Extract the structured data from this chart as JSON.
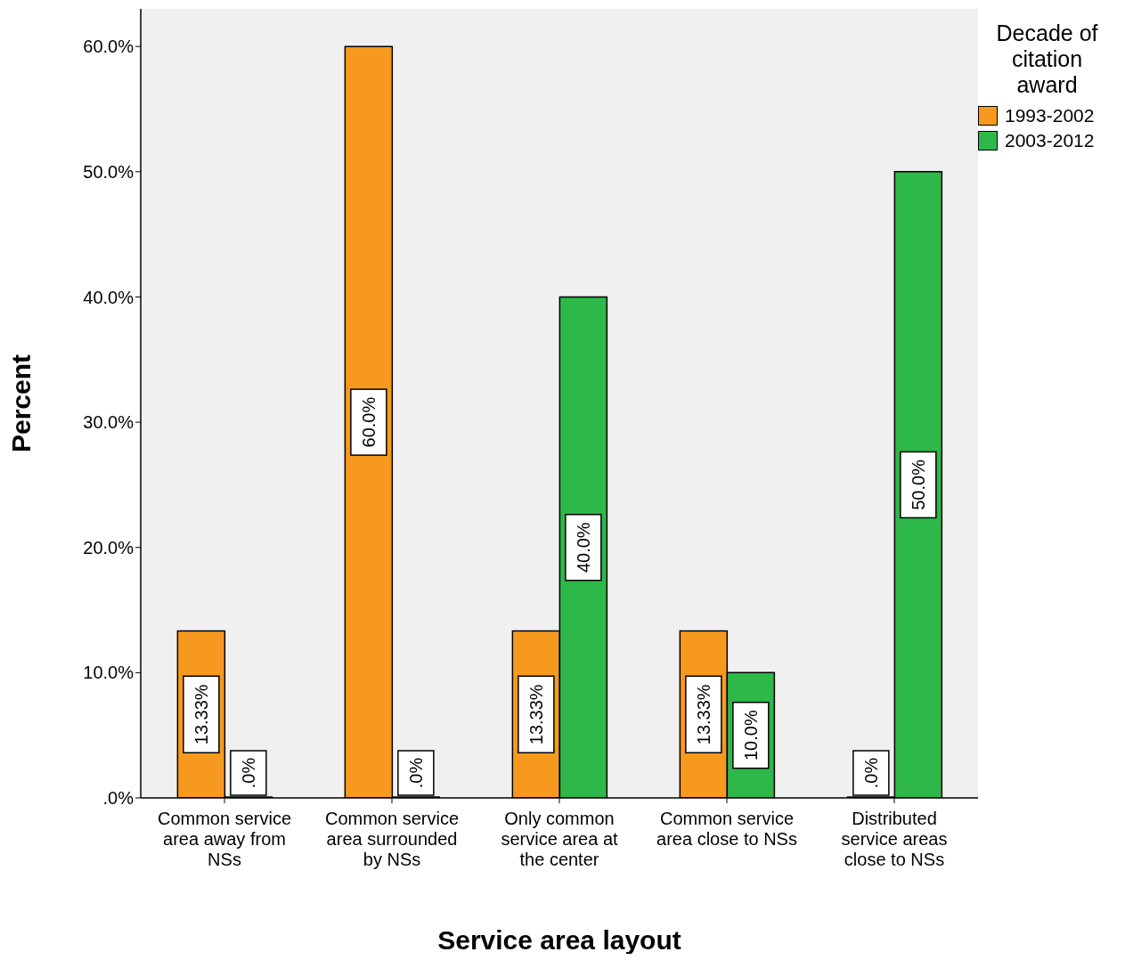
{
  "chart_data": {
    "type": "bar",
    "xlabel": "Service area layout",
    "ylabel": "Percent",
    "legend_title": "Decade of citation award",
    "legend": "top right",
    "categories": [
      "Common service area away from NSs",
      "Common service area surrounded by NSs",
      "Only common service area at the center",
      "Common service area close to NSs",
      "Distributed service areas close to NSs"
    ],
    "series": [
      {
        "name": "1993-2002",
        "color": "#f7991e",
        "values": [
          13.33,
          60,
          13.33,
          13.33,
          0
        ],
        "value_labels": [
          "13.33%",
          "60.0%",
          "13.33%",
          "13.33%",
          ".0%"
        ]
      },
      {
        "name": "2003-2012",
        "color": "#2eb84a",
        "values": [
          0,
          0,
          40,
          10,
          50
        ],
        "value_labels": [
          ".0%",
          ".0%",
          "40.0%",
          "10.0%",
          "50.0%"
        ]
      }
    ],
    "ylim": [
      0,
      63
    ],
    "yticks": [
      {
        "value": 0,
        "label": ".0%"
      },
      {
        "value": 10,
        "label": "10.0%"
      },
      {
        "value": 20,
        "label": "20.0%"
      },
      {
        "value": 30,
        "label": "30.0%"
      },
      {
        "value": 40,
        "label": "40.0%"
      },
      {
        "value": 50,
        "label": "50.0%"
      },
      {
        "value": 60,
        "label": "60.0%"
      }
    ]
  }
}
